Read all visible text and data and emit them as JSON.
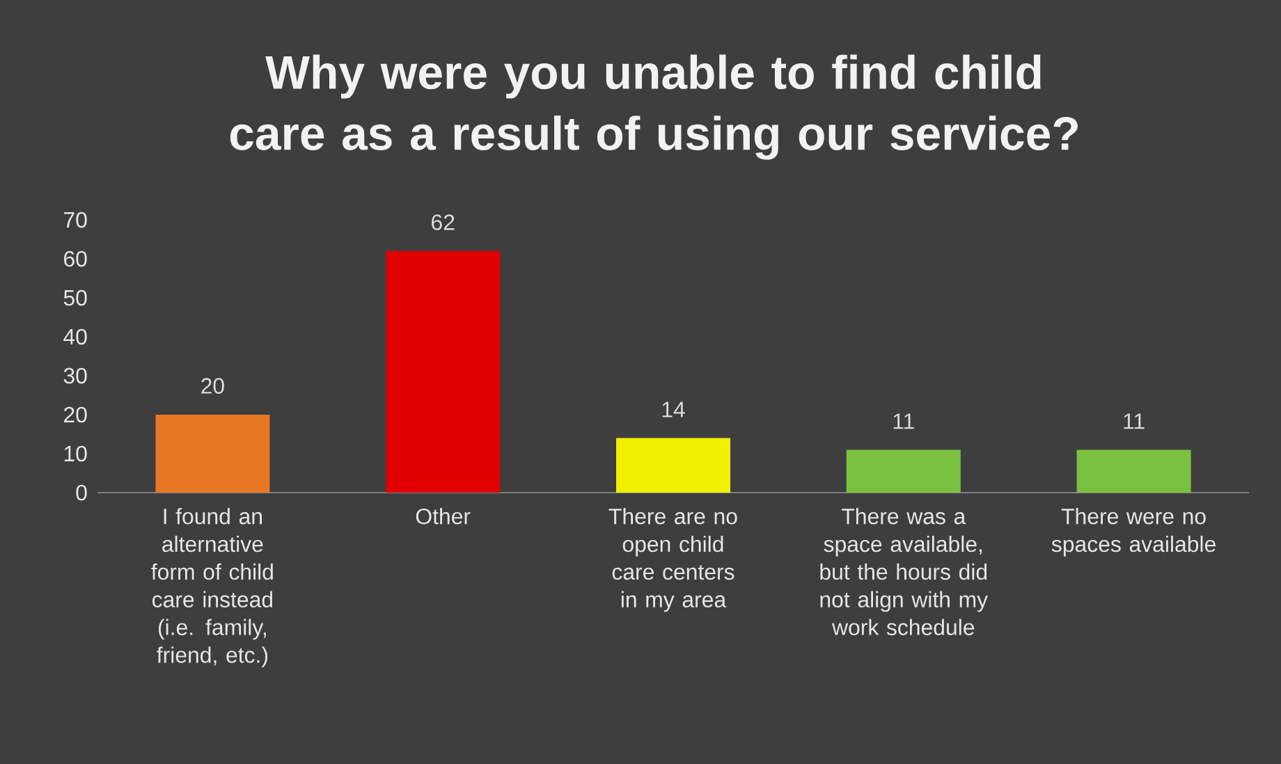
{
  "chart_data": {
    "type": "bar",
    "title": "Why were you unable to find child care as a result of using our service?",
    "categories": [
      "I found an alternative form of child care instead (i.e. family, friend, etc.)",
      "Other",
      "There are no open child care centers in my area",
      "There was a space available, but the hours did not align with my work schedule",
      "There were no spaces available"
    ],
    "values": [
      20,
      62,
      14,
      11,
      11
    ],
    "colors": [
      "#e87722",
      "#e00000",
      "#f0f000",
      "#7ac142",
      "#7ac142"
    ],
    "ylim": [
      0,
      70
    ],
    "yticks": [
      0,
      10,
      20,
      30,
      40,
      50,
      60,
      70
    ],
    "data_labels": true
  }
}
